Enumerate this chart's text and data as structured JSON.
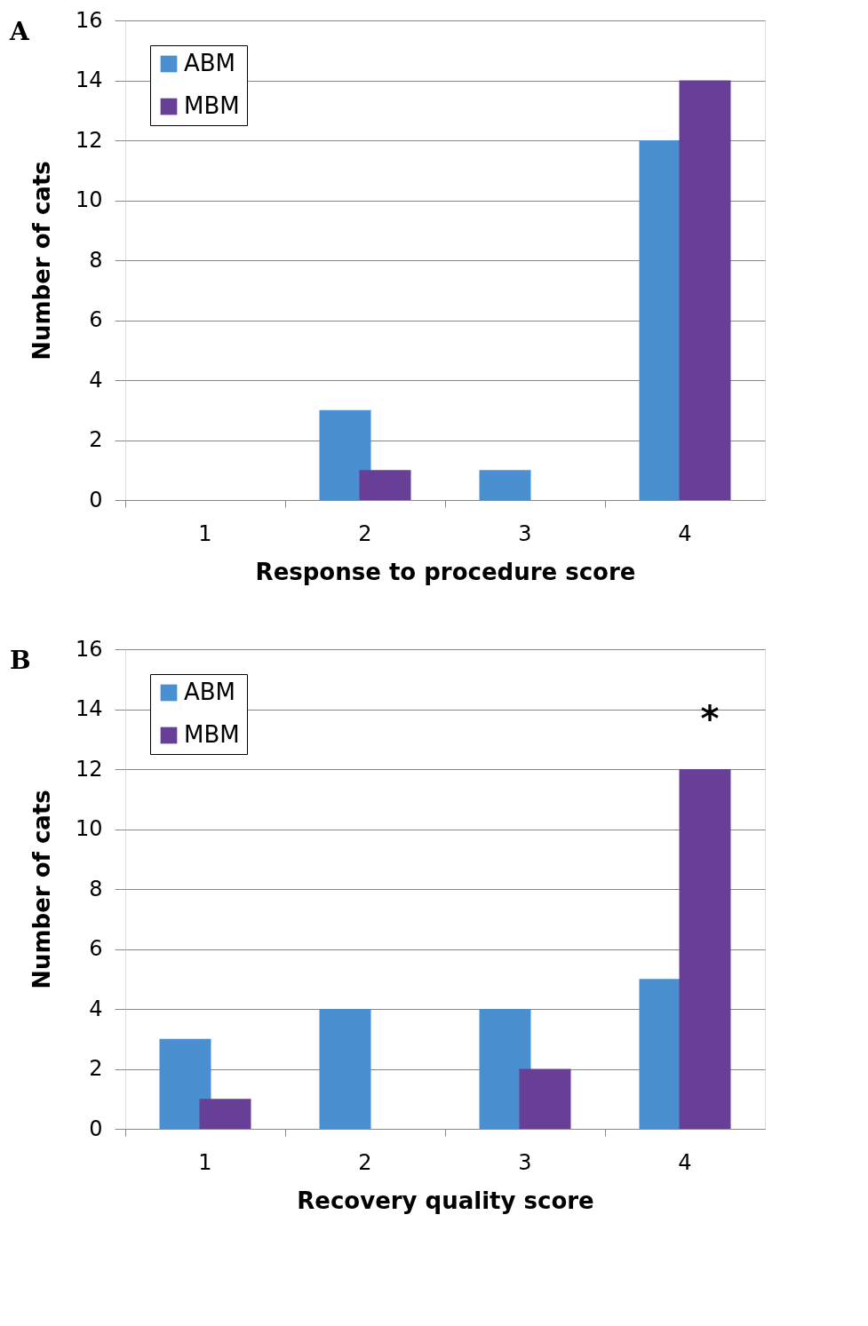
{
  "chart_data": [
    {
      "type": "bar",
      "title": "A",
      "xlabel": "Response to procedure score",
      "ylabel": "Number of cats",
      "categories": [
        "1",
        "2",
        "3",
        "4"
      ],
      "series": [
        {
          "name": "ABM",
          "color": "#4a90d0",
          "values": [
            0,
            3,
            1,
            12
          ]
        },
        {
          "name": "MBM",
          "color": "#673f97",
          "values": [
            0,
            1,
            0,
            14
          ]
        }
      ],
      "ylim": [
        0,
        16
      ],
      "yticks": [
        0,
        2,
        4,
        6,
        8,
        10,
        12,
        14,
        16
      ],
      "grid": "y",
      "legend": "top left"
    },
    {
      "type": "bar",
      "title": "B",
      "xlabel": "Recovery quality score",
      "ylabel": "Number of cats",
      "categories": [
        "1",
        "2",
        "3",
        "4"
      ],
      "series": [
        {
          "name": "ABM",
          "color": "#4a90d0",
          "values": [
            3,
            4,
            4,
            5
          ]
        },
        {
          "name": "MBM",
          "color": "#673f97",
          "values": [
            1,
            0,
            2,
            12
          ]
        }
      ],
      "ylim": [
        0,
        16
      ],
      "yticks": [
        0,
        2,
        4,
        6,
        8,
        10,
        12,
        14,
        16
      ],
      "grid": "y",
      "legend": "top left",
      "annotations": [
        "*"
      ]
    }
  ]
}
